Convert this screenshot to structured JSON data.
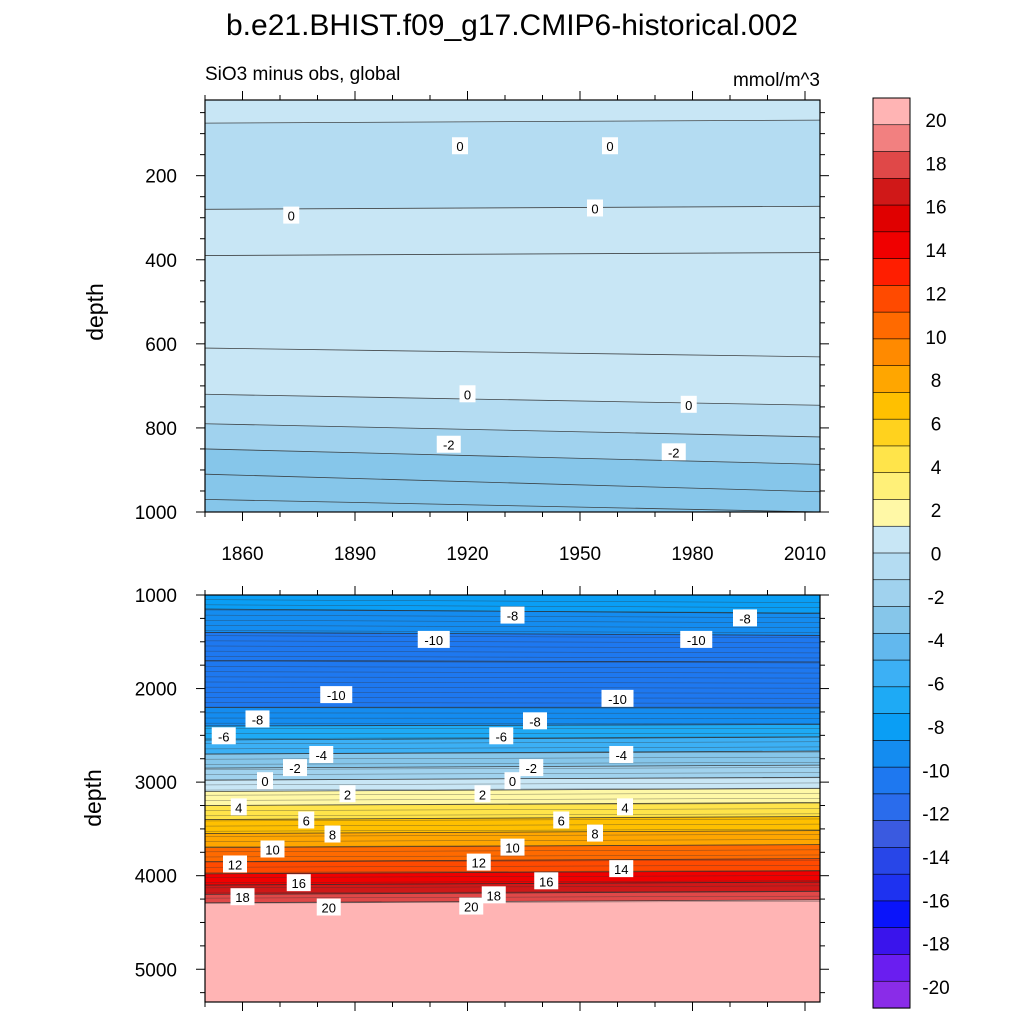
{
  "title": "b.e21.BHIST.f09_g17.CMIP6-historical.002",
  "chart_data": [
    {
      "type": "contour",
      "panel": "upper",
      "subtitle": "SiO3 minus obs, global",
      "units": "mmol/m^3",
      "xlabel": "",
      "ylabel": "depth",
      "xlim": [
        1850,
        2014
      ],
      "ylim": [
        1000,
        20
      ],
      "y_inverted": true,
      "x_ticks": [
        1860,
        1890,
        1920,
        1950,
        1980,
        2010
      ],
      "y_ticks": [
        200,
        400,
        600,
        800,
        1000
      ],
      "bands": [
        {
          "from": 20,
          "to": 75,
          "value": 1
        },
        {
          "from": 75,
          "to": 280,
          "value": -1
        },
        {
          "from": 280,
          "to": 390,
          "value": 1
        },
        {
          "from": 390,
          "to": 610,
          "value": 1
        },
        {
          "from": 610,
          "to": 720,
          "value": 1
        },
        {
          "from": 720,
          "to": 790,
          "value": -1
        },
        {
          "from": 790,
          "to": 850,
          "value": -1.5
        },
        {
          "from": 850,
          "to": 910,
          "value": -2.5
        },
        {
          "from": 910,
          "to": 970,
          "value": -3
        },
        {
          "from": 970,
          "to": 1000,
          "value": -3.5
        }
      ],
      "contour_labels": [
        {
          "x": 1918,
          "depth": 130,
          "text": "0"
        },
        {
          "x": 1958,
          "depth": 130,
          "text": "0"
        },
        {
          "x": 1873,
          "depth": 295,
          "text": "0"
        },
        {
          "x": 1954,
          "depth": 278,
          "text": "0"
        },
        {
          "x": 1920,
          "depth": 720,
          "text": "0"
        },
        {
          "x": 1979,
          "depth": 745,
          "text": "0"
        },
        {
          "x": 1915,
          "depth": 840,
          "text": "-2"
        },
        {
          "x": 1975,
          "depth": 858,
          "text": "-2"
        }
      ]
    },
    {
      "type": "contour",
      "panel": "lower",
      "xlabel": "",
      "ylabel": "depth",
      "xlim": [
        1850,
        2014
      ],
      "ylim": [
        5350,
        1000
      ],
      "y_inverted": true,
      "y_ticks": [
        1000,
        2000,
        3000,
        4000,
        5000
      ],
      "bands": [
        {
          "from": 1000,
          "to": 1150,
          "value": -8
        },
        {
          "from": 1150,
          "to": 1400,
          "value": -9
        },
        {
          "from": 1400,
          "to": 1700,
          "value": -10
        },
        {
          "from": 1700,
          "to": 2200,
          "value": -11
        },
        {
          "from": 2200,
          "to": 2400,
          "value": -9
        },
        {
          "from": 2400,
          "to": 2550,
          "value": -7
        },
        {
          "from": 2550,
          "to": 2700,
          "value": -5.5
        },
        {
          "from": 2700,
          "to": 2850,
          "value": -3.5
        },
        {
          "from": 2850,
          "to": 2980,
          "value": -1.5
        },
        {
          "from": 2980,
          "to": 3100,
          "value": 0.5
        },
        {
          "from": 3100,
          "to": 3250,
          "value": 2.5
        },
        {
          "from": 3250,
          "to": 3400,
          "value": 4.5
        },
        {
          "from": 3400,
          "to": 3550,
          "value": 6.5
        },
        {
          "from": 3550,
          "to": 3700,
          "value": 8.5
        },
        {
          "from": 3700,
          "to": 3850,
          "value": 10.5
        },
        {
          "from": 3850,
          "to": 3980,
          "value": 12.5
        },
        {
          "from": 3980,
          "to": 4100,
          "value": 14.5
        },
        {
          "from": 4100,
          "to": 4200,
          "value": 16.5
        },
        {
          "from": 4200,
          "to": 4290,
          "value": 18.5
        },
        {
          "from": 4290,
          "to": 5350,
          "value": 21
        }
      ],
      "contour_labels": [
        {
          "x": 1932,
          "depth": 1220,
          "text": "-8"
        },
        {
          "x": 1994,
          "depth": 1250,
          "text": "-8"
        },
        {
          "x": 1911,
          "depth": 1480,
          "text": "-10"
        },
        {
          "x": 1981,
          "depth": 1480,
          "text": "-10"
        },
        {
          "x": 1885,
          "depth": 2070,
          "text": "-10"
        },
        {
          "x": 1960,
          "depth": 2110,
          "text": "-10"
        },
        {
          "x": 1864,
          "depth": 2330,
          "text": "-8"
        },
        {
          "x": 1938,
          "depth": 2350,
          "text": "-8"
        },
        {
          "x": 1855,
          "depth": 2510,
          "text": "-6"
        },
        {
          "x": 1929,
          "depth": 2510,
          "text": "-6"
        },
        {
          "x": 1881,
          "depth": 2710,
          "text": "-4"
        },
        {
          "x": 1961,
          "depth": 2710,
          "text": "-4"
        },
        {
          "x": 1874,
          "depth": 2850,
          "text": "-2"
        },
        {
          "x": 1937,
          "depth": 2850,
          "text": "-2"
        },
        {
          "x": 1866,
          "depth": 2990,
          "text": "0"
        },
        {
          "x": 1932,
          "depth": 2990,
          "text": "0"
        },
        {
          "x": 1888,
          "depth": 3130,
          "text": "2"
        },
        {
          "x": 1924,
          "depth": 3130,
          "text": "2"
        },
        {
          "x": 1859,
          "depth": 3270,
          "text": "4"
        },
        {
          "x": 1962,
          "depth": 3270,
          "text": "4"
        },
        {
          "x": 1877,
          "depth": 3410,
          "text": "6"
        },
        {
          "x": 1945,
          "depth": 3410,
          "text": "6"
        },
        {
          "x": 1884,
          "depth": 3560,
          "text": "8"
        },
        {
          "x": 1954,
          "depth": 3550,
          "text": "8"
        },
        {
          "x": 1868,
          "depth": 3720,
          "text": "10"
        },
        {
          "x": 1932,
          "depth": 3700,
          "text": "10"
        },
        {
          "x": 1858,
          "depth": 3880,
          "text": "12"
        },
        {
          "x": 1923,
          "depth": 3860,
          "text": "12"
        },
        {
          "x": 1961,
          "depth": 3930,
          "text": "14"
        },
        {
          "x": 1875,
          "depth": 4080,
          "text": "16"
        },
        {
          "x": 1941,
          "depth": 4060,
          "text": "16"
        },
        {
          "x": 1860,
          "depth": 4230,
          "text": "18"
        },
        {
          "x": 1927,
          "depth": 4210,
          "text": "18"
        },
        {
          "x": 1883,
          "depth": 4340,
          "text": "20"
        },
        {
          "x": 1921,
          "depth": 4330,
          "text": "20"
        }
      ]
    }
  ],
  "colorbar": {
    "labels": [
      "20",
      "18",
      "16",
      "14",
      "12",
      "10",
      "8",
      "6",
      "4",
      "2",
      "0",
      "-2",
      "-4",
      "-6",
      "-8",
      "-10",
      "-12",
      "-14",
      "-16",
      "-18",
      "-20"
    ],
    "colors": [
      "#ffb4b4",
      "#f28080",
      "#e04848",
      "#d01818",
      "#e00000",
      "#f00000",
      "#ff1e00",
      "#ff4a00",
      "#ff6a00",
      "#ff8a00",
      "#ffa600",
      "#ffc000",
      "#ffd21e",
      "#ffe44a",
      "#fff078",
      "#fff8a6",
      "#c8e6f5",
      "#b4dcf2",
      "#a0d2ee",
      "#86c6ea",
      "#62b8ee",
      "#3cb0f5",
      "#1eaaf5",
      "#0a9ef5",
      "#148cf0",
      "#1e78f0",
      "#2a6cec",
      "#3a5ae0",
      "#2846e8",
      "#1e32f0",
      "#0a14fa",
      "#3a14ec",
      "#6a1ef0",
      "#8a2ce8"
    ]
  }
}
